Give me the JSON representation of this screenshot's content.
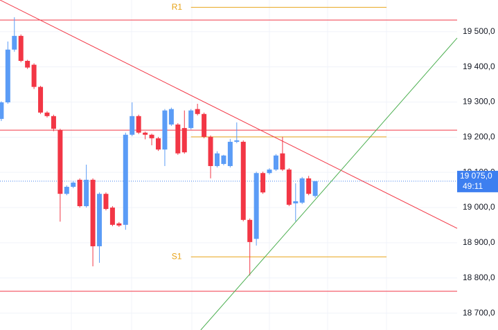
{
  "chart_data": {
    "type": "candlestick",
    "categories": [
      null,
      null,
      null,
      null,
      null,
      null,
      null,
      null,
      null,
      null,
      null,
      null,
      null,
      null,
      null,
      null,
      null,
      null,
      null,
      null,
      null,
      null,
      null,
      null,
      null,
      null,
      null,
      null,
      null,
      null,
      null,
      null,
      null,
      null,
      null,
      null,
      null,
      null,
      null,
      null,
      null,
      null,
      null,
      null,
      null,
      null,
      null,
      null,
      null
    ],
    "open": [
      19252,
      19299,
      19449,
      19488,
      19417,
      19406,
      19343,
      19270,
      19260,
      19220,
      19039,
      19059,
      19079,
      19004,
      19079,
      18890,
      19039,
      19000,
      18955,
      18951,
      19207,
      19260,
      19213,
      19207,
      19197,
      19165,
      19236,
      19236,
      19226,
      19226,
      19280,
      19266,
      19201,
      19118,
      19124,
      19118,
      19187,
      19187,
      18965,
      18911,
      19098,
      19098,
      19108,
      19154,
      19108,
      19012,
      19014,
      19083,
      19033
    ],
    "high": [
      19302,
      19472,
      19541,
      19492,
      19420,
      19410,
      19346,
      19274,
      19264,
      19224,
      19063,
      19075,
      19083,
      19122,
      19083,
      19043,
      19043,
      19004,
      18959,
      19213,
      19299,
      19264,
      19216,
      19210,
      19201,
      19280,
      19284,
      19240,
      19276,
      19280,
      19295,
      19270,
      19205,
      19160,
      19150,
      19195,
      19242,
      19191,
      18969,
      19102,
      19102,
      19112,
      19152,
      19201,
      19112,
      19069,
      19087,
      19090,
      19075
    ],
    "low": [
      19246,
      19295,
      19443,
      19413,
      19394,
      19337,
      19266,
      19256,
      19217,
      18960,
      19035,
      19055,
      19000,
      19000,
      18833,
      18843,
      18992,
      18947,
      18945,
      18937,
      19203,
      19209,
      19194,
      19177,
      19161,
      19118,
      19232,
      19150,
      19153,
      19222,
      19262,
      19197,
      19083,
      19114,
      19120,
      19114,
      19183,
      18961,
      18807,
      18892,
      19039,
      19094,
      19104,
      19104,
      19004,
      18961,
      19010,
      19035,
      19028
    ],
    "close": [
      19299,
      19449,
      19488,
      19417,
      19398,
      19343,
      19270,
      19260,
      19224,
      19039,
      19059,
      19071,
      19004,
      19079,
      18890,
      19039,
      18996,
      18951,
      18949,
      19207,
      19260,
      19213,
      19207,
      19197,
      19165,
      19276,
      19280,
      19154,
      19157,
      19276,
      19266,
      19201,
      19118,
      19154,
      19148,
      19187,
      19191,
      18965,
      18902,
      19098,
      19043,
      19108,
      19148,
      19108,
      19008,
      19018,
      19083,
      19039,
      19075
    ],
    "up_color": "#5b9cf6",
    "down_color": "#f23645",
    "xlim": [
      -0.2,
      69.7
    ],
    "ylim": [
      18652,
      19590
    ],
    "yticks": [
      {
        "value": 18700,
        "label": "18 700,0"
      },
      {
        "value": 18800,
        "label": "18 800,0"
      },
      {
        "value": 18900,
        "label": "18 900,0"
      },
      {
        "value": 19000,
        "label": "19 000,0"
      },
      {
        "value": 19100,
        "label": "19 100,0"
      },
      {
        "value": 19200,
        "label": "19 200,0"
      },
      {
        "value": 19300,
        "label": "19 300,0"
      },
      {
        "value": 19400,
        "label": "19 400,0"
      },
      {
        "value": 19500,
        "label": "19 500,0"
      }
    ],
    "grid": true,
    "levels": [
      {
        "value": 19533,
        "color": "#f23645"
      },
      {
        "value": 19220,
        "color": "#f23645"
      },
      {
        "value": 18762,
        "color": "#f23645"
      },
      {
        "value": 19569,
        "color": "#e8a317",
        "label": "R1",
        "start": 29,
        "end": 58.9
      },
      {
        "value": 19201,
        "color": "#e8a317",
        "start": 29,
        "end": 58.9
      },
      {
        "value": 18860,
        "color": "#e8a317",
        "label": "S1",
        "start": 29,
        "end": 58.9
      }
    ],
    "trendlines": [
      {
        "color": "#f23645",
        "x": [
          -0.2,
          69.7
        ],
        "y": [
          19590,
          18941
        ]
      },
      {
        "color": "#4caf50",
        "x": [
          30.5,
          69.7
        ],
        "y": [
          18652,
          19482
        ]
      }
    ],
    "last_price": {
      "value": 19075,
      "label": "19 075,0",
      "countdown": "49:11",
      "color": "#3d7ff0"
    }
  }
}
